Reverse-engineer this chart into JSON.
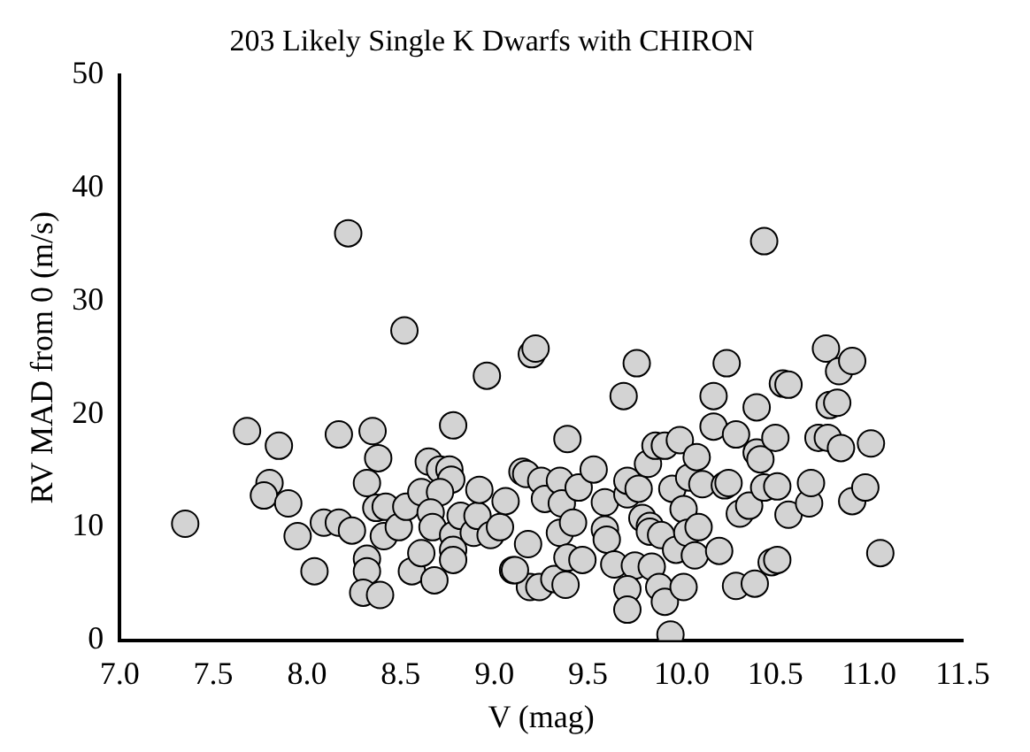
{
  "chart_data": {
    "type": "scatter",
    "title": "203 Likely Single K Dwarfs with CHIRON",
    "xlabel": "V (mag)",
    "ylabel": "RV MAD from 0 (m/s)",
    "marker": "circle",
    "grid": false,
    "legend": false,
    "xlim": [
      7.0,
      11.5
    ],
    "xticks": [
      {
        "value": 7.0,
        "label": "7.0"
      },
      {
        "value": 7.5,
        "label": "7.5"
      },
      {
        "value": 8.0,
        "label": "8.0"
      },
      {
        "value": 8.5,
        "label": "8.5"
      },
      {
        "value": 9.0,
        "label": "9.0"
      },
      {
        "value": 9.5,
        "label": "9.5"
      },
      {
        "value": 10.0,
        "label": "10.0"
      },
      {
        "value": 10.5,
        "label": "10.5"
      },
      {
        "value": 11.0,
        "label": "11.0"
      },
      {
        "value": 11.5,
        "label": "11.5"
      }
    ],
    "ylim": [
      0,
      50
    ],
    "yticks": [
      0,
      10,
      20,
      30,
      40,
      50
    ],
    "series": [
      {
        "color": "#d3d3d3",
        "x": [
          7.35,
          7.68,
          7.8,
          7.77,
          7.85,
          7.9,
          7.95,
          8.04,
          8.09,
          8.17,
          8.24,
          8.17,
          8.22,
          8.35,
          8.38,
          8.32,
          8.37,
          8.41,
          8.32,
          8.32,
          8.3,
          8.39,
          8.42,
          8.49,
          8.52,
          8.53,
          8.61,
          8.56,
          8.61,
          8.68,
          8.65,
          8.71,
          8.76,
          8.77,
          8.71,
          8.66,
          8.67,
          8.78,
          8.78,
          8.78,
          8.78,
          8.82,
          8.89,
          8.91,
          8.92,
          8.98,
          9.03,
          9.06,
          9.1,
          8.96,
          9.15,
          9.2,
          9.22,
          9.18,
          9.19,
          9.17,
          9.25,
          9.27,
          9.35,
          9.36,
          9.35,
          9.42,
          9.45,
          9.53,
          9.39,
          9.11,
          9.24,
          9.32,
          9.38,
          9.39,
          9.47,
          9.59,
          9.59,
          9.6,
          9.64,
          9.71,
          9.71,
          9.77,
          9.69,
          9.76,
          9.75,
          9.71,
          9.71,
          9.79,
          9.83,
          9.83,
          9.84,
          9.82,
          9.86,
          9.91,
          9.88,
          9.91,
          9.89,
          9.94,
          9.95,
          9.99,
          10.01,
          9.97,
          10.01,
          10.04,
          10.03,
          10.07,
          10.08,
          10.09,
          10.11,
          10.17,
          10.17,
          10.2,
          10.23,
          10.24,
          10.25,
          10.29,
          10.29,
          10.31,
          10.36,
          10.39,
          10.4,
          10.4,
          10.42,
          10.44,
          10.44,
          10.48,
          10.51,
          10.51,
          10.5,
          10.54,
          10.57,
          10.57,
          10.68,
          10.69,
          10.73,
          10.78,
          10.77,
          10.79,
          10.83,
          10.84,
          10.91,
          10.85,
          10.91,
          10.98,
          11.01,
          11.06
        ],
        "values": [
          10.3,
          18.5,
          13.9,
          12.8,
          17.2,
          12.1,
          9.2,
          6.1,
          10.4,
          10.4,
          9.7,
          18.2,
          36.0,
          18.5,
          16.1,
          13.9,
          11.7,
          9.2,
          7.2,
          6.1,
          4.2,
          4.0,
          11.8,
          10.0,
          27.4,
          11.8,
          13.1,
          6.1,
          7.7,
          5.3,
          15.8,
          15.1,
          15.1,
          14.2,
          13.1,
          11.3,
          10.0,
          9.3,
          8.0,
          7.1,
          19.0,
          11.0,
          9.5,
          11.0,
          13.3,
          9.3,
          10.0,
          12.3,
          6.2,
          23.4,
          14.9,
          25.3,
          25.8,
          8.5,
          4.7,
          14.7,
          14.1,
          12.5,
          14.1,
          12.1,
          9.5,
          10.4,
          13.5,
          15.1,
          17.8,
          6.2,
          4.7,
          5.4,
          4.9,
          7.3,
          7.1,
          12.2,
          9.8,
          8.9,
          6.7,
          12.9,
          14.1,
          13.4,
          21.6,
          24.5,
          6.6,
          4.5,
          2.7,
          10.8,
          10.1,
          9.6,
          6.5,
          15.6,
          17.2,
          17.2,
          4.7,
          3.4,
          9.3,
          0.5,
          13.4,
          17.7,
          4.7,
          8.0,
          11.6,
          14.4,
          9.5,
          7.5,
          16.2,
          10.0,
          13.8,
          18.9,
          21.6,
          7.9,
          13.7,
          24.5,
          13.9,
          18.2,
          4.8,
          11.2,
          11.9,
          5.0,
          20.6,
          16.6,
          16.0,
          35.3,
          13.5,
          6.9,
          7.1,
          13.6,
          17.9,
          22.7,
          22.6,
          11.1,
          12.1,
          13.9,
          17.9,
          17.9,
          25.8,
          20.8,
          21.0,
          23.8,
          24.7,
          17.0,
          12.3,
          13.5,
          17.4,
          7.7
        ]
      }
    ]
  }
}
